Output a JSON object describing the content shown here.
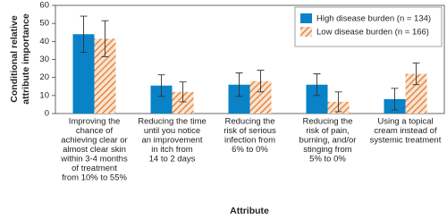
{
  "chart_data": {
    "type": "bar",
    "ylabel": [
      "Conditional relative",
      "attribute importance"
    ],
    "xlabel": "Attribute",
    "categories": [
      [
        "Improving the",
        "chance of",
        "achieving clear or",
        "almost clear skin",
        "within 3-4 months",
        "of treatment",
        "from 10% to 55%"
      ],
      [
        "Reducing the time",
        "until you notice",
        "an improvement",
        "in itch from",
        "14 to 2 days"
      ],
      [
        "Reducing the",
        "risk of serious",
        "infection from",
        "6% to 0%"
      ],
      [
        "Reducing the",
        "risk of pain,",
        "burning, and/or",
        "stinging from",
        "5% to 0%"
      ],
      [
        "Using a topical",
        "cream instead of",
        "systemic treatment"
      ]
    ],
    "series": [
      {
        "name": "High disease burden (n = 134)",
        "color": "#0a82c8",
        "values": [
          44,
          15.5,
          16,
          16,
          8
        ],
        "errors": [
          10,
          6,
          6.5,
          6,
          6
        ]
      },
      {
        "name": "Low disease burden (n = 166)",
        "color": "#e08a4a",
        "hatch": true,
        "values": [
          41.5,
          12,
          18,
          6.5,
          22
        ],
        "errors": [
          10,
          5.5,
          6,
          5.5,
          6
        ]
      }
    ],
    "ylim": [
      0,
      60
    ],
    "yticks": [
      0,
      10,
      20,
      30,
      40,
      50,
      60
    ],
    "legend": "upper-right"
  }
}
